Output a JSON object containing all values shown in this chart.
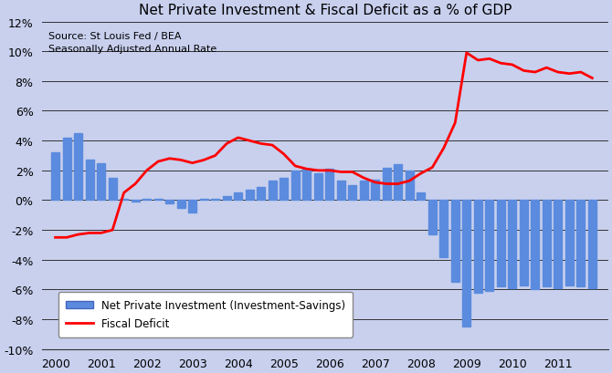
{
  "title": "Net Private Investment & Fiscal Deficit as a % of GDP",
  "subtitle_line1": "Source: St Louis Fed / BEA",
  "subtitle_line2": "Seasonally Adjusted Annual Rate",
  "plot_bg_color": "#c8d0ee",
  "fig_bg_color": "#c8d0ee",
  "bar_color": "#5b8bde",
  "line_color": "#ff0000",
  "ylim": [
    -10,
    12
  ],
  "yticks": [
    -10,
    -8,
    -6,
    -4,
    -2,
    0,
    2,
    4,
    6,
    8,
    10,
    12
  ],
  "ytick_labels": [
    "-10%",
    "-8%",
    "-6%",
    "-4%",
    "-2%",
    "0%",
    "2%",
    "4%",
    "6%",
    "8%",
    "10%",
    "12%"
  ],
  "bar_data_x": [
    2000.0,
    2000.25,
    2000.5,
    2000.75,
    2001.0,
    2001.25,
    2001.5,
    2001.75,
    2002.0,
    2002.25,
    2002.5,
    2002.75,
    2003.0,
    2003.25,
    2003.5,
    2003.75,
    2004.0,
    2004.25,
    2004.5,
    2004.75,
    2005.0,
    2005.25,
    2005.5,
    2005.75,
    2006.0,
    2006.25,
    2006.5,
    2006.75,
    2007.0,
    2007.25,
    2007.5,
    2007.75,
    2008.0,
    2008.25,
    2008.5,
    2008.75,
    2009.0,
    2009.25,
    2009.5,
    2009.75,
    2010.0,
    2010.25,
    2010.5,
    2010.75,
    2011.0,
    2011.25,
    2011.5,
    2011.75
  ],
  "bar_data_y": [
    3.2,
    4.2,
    4.5,
    2.7,
    2.5,
    1.5,
    0.1,
    -0.1,
    0.1,
    0.1,
    -0.2,
    -0.5,
    -0.8,
    0.1,
    0.1,
    0.3,
    0.5,
    0.7,
    0.9,
    1.3,
    1.5,
    2.0,
    2.1,
    1.8,
    2.1,
    1.3,
    1.0,
    1.3,
    1.4,
    2.2,
    2.4,
    2.0,
    0.5,
    -2.3,
    -3.8,
    -5.5,
    -8.5,
    -6.2,
    -6.1,
    -5.8,
    -5.9,
    -5.7,
    -6.0,
    -5.8,
    -5.9,
    -5.7,
    -5.8,
    -5.9
  ],
  "line_data_x": [
    2000.0,
    2000.25,
    2000.5,
    2000.75,
    2001.0,
    2001.25,
    2001.5,
    2001.75,
    2002.0,
    2002.25,
    2002.5,
    2002.75,
    2003.0,
    2003.25,
    2003.5,
    2003.75,
    2004.0,
    2004.25,
    2004.5,
    2004.75,
    2005.0,
    2005.25,
    2005.5,
    2005.75,
    2006.0,
    2006.25,
    2006.5,
    2006.75,
    2007.0,
    2007.25,
    2007.5,
    2007.75,
    2008.0,
    2008.25,
    2008.5,
    2008.75,
    2009.0,
    2009.25,
    2009.5,
    2009.75,
    2010.0,
    2010.25,
    2010.5,
    2010.75,
    2011.0,
    2011.25,
    2011.5,
    2011.75
  ],
  "line_data_y": [
    -2.5,
    -2.5,
    -2.3,
    -2.2,
    -2.2,
    -2.0,
    0.5,
    1.1,
    2.0,
    2.6,
    2.8,
    2.7,
    2.5,
    2.7,
    3.0,
    3.8,
    4.2,
    4.0,
    3.8,
    3.7,
    3.1,
    2.3,
    2.1,
    2.0,
    2.0,
    1.9,
    1.9,
    1.5,
    1.2,
    1.1,
    1.1,
    1.3,
    1.8,
    2.2,
    3.5,
    5.2,
    9.9,
    9.4,
    9.5,
    9.2,
    9.1,
    8.7,
    8.6,
    8.9,
    8.6,
    8.5,
    8.6,
    8.2
  ],
  "xtick_positions": [
    2000,
    2001,
    2002,
    2003,
    2004,
    2005,
    2006,
    2007,
    2008,
    2009,
    2010,
    2011
  ],
  "xtick_labels": [
    "2000",
    "2001",
    "2002",
    "2003",
    "2004",
    "2005",
    "2006",
    "2007",
    "2008",
    "2009",
    "2010",
    "2011"
  ],
  "legend_label_bar": "Net Private Investment (Investment-Savings)",
  "legend_label_line": "Fiscal Deficit",
  "bar_width": 0.18,
  "xlim_left": 1999.7,
  "xlim_right": 2012.1
}
